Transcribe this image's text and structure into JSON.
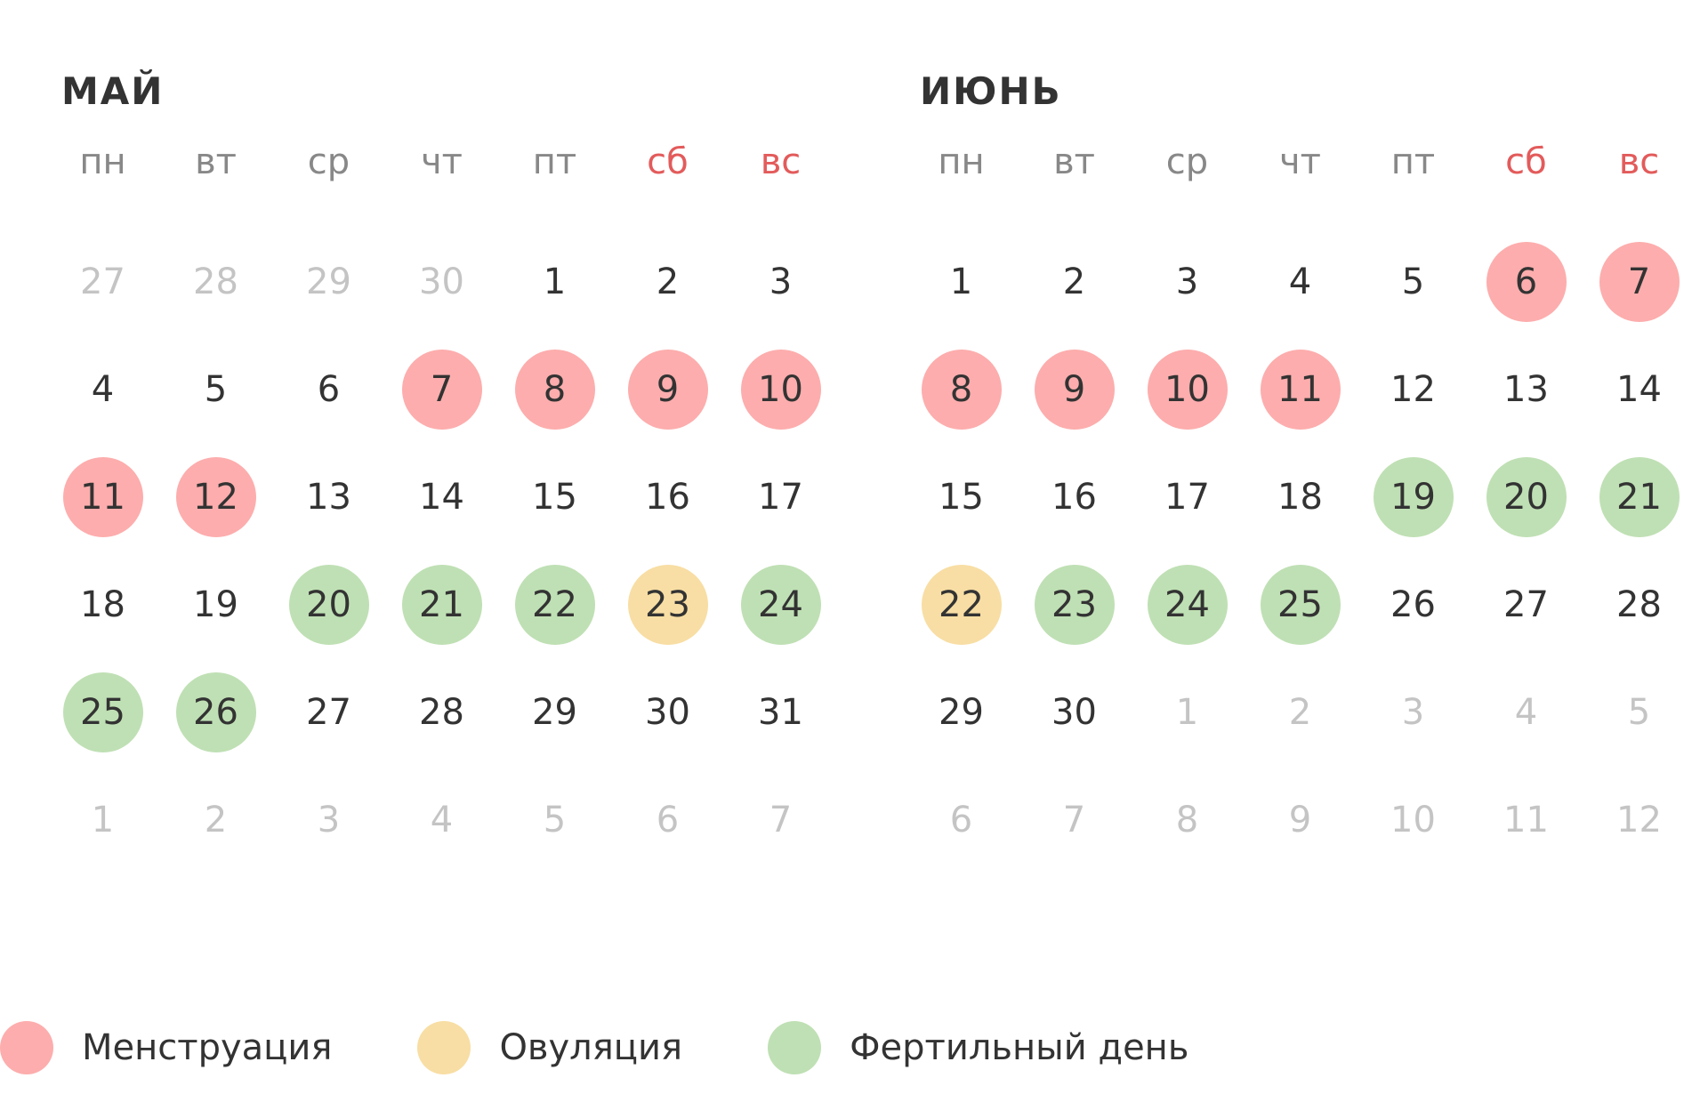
{
  "colors": {
    "menstruation": "#fdadad",
    "ovulation": "#f8dea4",
    "fertile": "#bfe0b4",
    "weekend_header": "#e35b5b",
    "other_month_text": "#c4c4c4",
    "text": "#333333"
  },
  "months": [
    {
      "title": "МАЙ",
      "weekdays": [
        "пн",
        "вт",
        "ср",
        "чт",
        "пт",
        "сб",
        "вс"
      ],
      "weekend_indices": [
        5,
        6
      ],
      "days": [
        {
          "num": "27",
          "other": true,
          "status": ""
        },
        {
          "num": "28",
          "other": true,
          "status": ""
        },
        {
          "num": "29",
          "other": true,
          "status": ""
        },
        {
          "num": "30",
          "other": true,
          "status": ""
        },
        {
          "num": "1",
          "other": false,
          "status": ""
        },
        {
          "num": "2",
          "other": false,
          "status": ""
        },
        {
          "num": "3",
          "other": false,
          "status": ""
        },
        {
          "num": "4",
          "other": false,
          "status": ""
        },
        {
          "num": "5",
          "other": false,
          "status": ""
        },
        {
          "num": "6",
          "other": false,
          "status": ""
        },
        {
          "num": "7",
          "other": false,
          "status": "menstruation"
        },
        {
          "num": "8",
          "other": false,
          "status": "menstruation"
        },
        {
          "num": "9",
          "other": false,
          "status": "menstruation"
        },
        {
          "num": "10",
          "other": false,
          "status": "menstruation"
        },
        {
          "num": "11",
          "other": false,
          "status": "menstruation"
        },
        {
          "num": "12",
          "other": false,
          "status": "menstruation"
        },
        {
          "num": "13",
          "other": false,
          "status": ""
        },
        {
          "num": "14",
          "other": false,
          "status": ""
        },
        {
          "num": "15",
          "other": false,
          "status": ""
        },
        {
          "num": "16",
          "other": false,
          "status": ""
        },
        {
          "num": "17",
          "other": false,
          "status": ""
        },
        {
          "num": "18",
          "other": false,
          "status": ""
        },
        {
          "num": "19",
          "other": false,
          "status": ""
        },
        {
          "num": "20",
          "other": false,
          "status": "fertile"
        },
        {
          "num": "21",
          "other": false,
          "status": "fertile"
        },
        {
          "num": "22",
          "other": false,
          "status": "fertile"
        },
        {
          "num": "23",
          "other": false,
          "status": "ovulation"
        },
        {
          "num": "24",
          "other": false,
          "status": "fertile"
        },
        {
          "num": "25",
          "other": false,
          "status": "fertile"
        },
        {
          "num": "26",
          "other": false,
          "status": "fertile"
        },
        {
          "num": "27",
          "other": false,
          "status": ""
        },
        {
          "num": "28",
          "other": false,
          "status": ""
        },
        {
          "num": "29",
          "other": false,
          "status": ""
        },
        {
          "num": "30",
          "other": false,
          "status": ""
        },
        {
          "num": "31",
          "other": false,
          "status": ""
        },
        {
          "num": "1",
          "other": true,
          "status": ""
        },
        {
          "num": "2",
          "other": true,
          "status": ""
        },
        {
          "num": "3",
          "other": true,
          "status": ""
        },
        {
          "num": "4",
          "other": true,
          "status": ""
        },
        {
          "num": "5",
          "other": true,
          "status": ""
        },
        {
          "num": "6",
          "other": true,
          "status": ""
        },
        {
          "num": "7",
          "other": true,
          "status": ""
        }
      ]
    },
    {
      "title": "ИЮНЬ",
      "weekdays": [
        "пн",
        "вт",
        "ср",
        "чт",
        "пт",
        "сб",
        "вс"
      ],
      "weekend_indices": [
        5,
        6
      ],
      "days": [
        {
          "num": "1",
          "other": false,
          "status": ""
        },
        {
          "num": "2",
          "other": false,
          "status": ""
        },
        {
          "num": "3",
          "other": false,
          "status": ""
        },
        {
          "num": "4",
          "other": false,
          "status": ""
        },
        {
          "num": "5",
          "other": false,
          "status": ""
        },
        {
          "num": "6",
          "other": false,
          "status": "menstruation"
        },
        {
          "num": "7",
          "other": false,
          "status": "menstruation"
        },
        {
          "num": "8",
          "other": false,
          "status": "menstruation"
        },
        {
          "num": "9",
          "other": false,
          "status": "menstruation"
        },
        {
          "num": "10",
          "other": false,
          "status": "menstruation"
        },
        {
          "num": "11",
          "other": false,
          "status": "menstruation"
        },
        {
          "num": "12",
          "other": false,
          "status": ""
        },
        {
          "num": "13",
          "other": false,
          "status": ""
        },
        {
          "num": "14",
          "other": false,
          "status": ""
        },
        {
          "num": "15",
          "other": false,
          "status": ""
        },
        {
          "num": "16",
          "other": false,
          "status": ""
        },
        {
          "num": "17",
          "other": false,
          "status": ""
        },
        {
          "num": "18",
          "other": false,
          "status": ""
        },
        {
          "num": "19",
          "other": false,
          "status": "fertile"
        },
        {
          "num": "20",
          "other": false,
          "status": "fertile"
        },
        {
          "num": "21",
          "other": false,
          "status": "fertile"
        },
        {
          "num": "22",
          "other": false,
          "status": "ovulation"
        },
        {
          "num": "23",
          "other": false,
          "status": "fertile"
        },
        {
          "num": "24",
          "other": false,
          "status": "fertile"
        },
        {
          "num": "25",
          "other": false,
          "status": "fertile"
        },
        {
          "num": "26",
          "other": false,
          "status": ""
        },
        {
          "num": "27",
          "other": false,
          "status": ""
        },
        {
          "num": "28",
          "other": false,
          "status": ""
        },
        {
          "num": "29",
          "other": false,
          "status": ""
        },
        {
          "num": "30",
          "other": false,
          "status": ""
        },
        {
          "num": "1",
          "other": true,
          "status": ""
        },
        {
          "num": "2",
          "other": true,
          "status": ""
        },
        {
          "num": "3",
          "other": true,
          "status": ""
        },
        {
          "num": "4",
          "other": true,
          "status": ""
        },
        {
          "num": "5",
          "other": true,
          "status": ""
        },
        {
          "num": "6",
          "other": true,
          "status": ""
        },
        {
          "num": "7",
          "other": true,
          "status": ""
        },
        {
          "num": "8",
          "other": true,
          "status": ""
        },
        {
          "num": "9",
          "other": true,
          "status": ""
        },
        {
          "num": "10",
          "other": true,
          "status": ""
        },
        {
          "num": "11",
          "other": true,
          "status": ""
        },
        {
          "num": "12",
          "other": true,
          "status": ""
        }
      ]
    }
  ],
  "legend": [
    {
      "key": "menstruation",
      "label": "Менструация",
      "color": "#fdadad"
    },
    {
      "key": "ovulation",
      "label": "Овуляция",
      "color": "#f8dea4"
    },
    {
      "key": "fertile",
      "label": "Фертильный день",
      "color": "#bfe0b4"
    }
  ]
}
